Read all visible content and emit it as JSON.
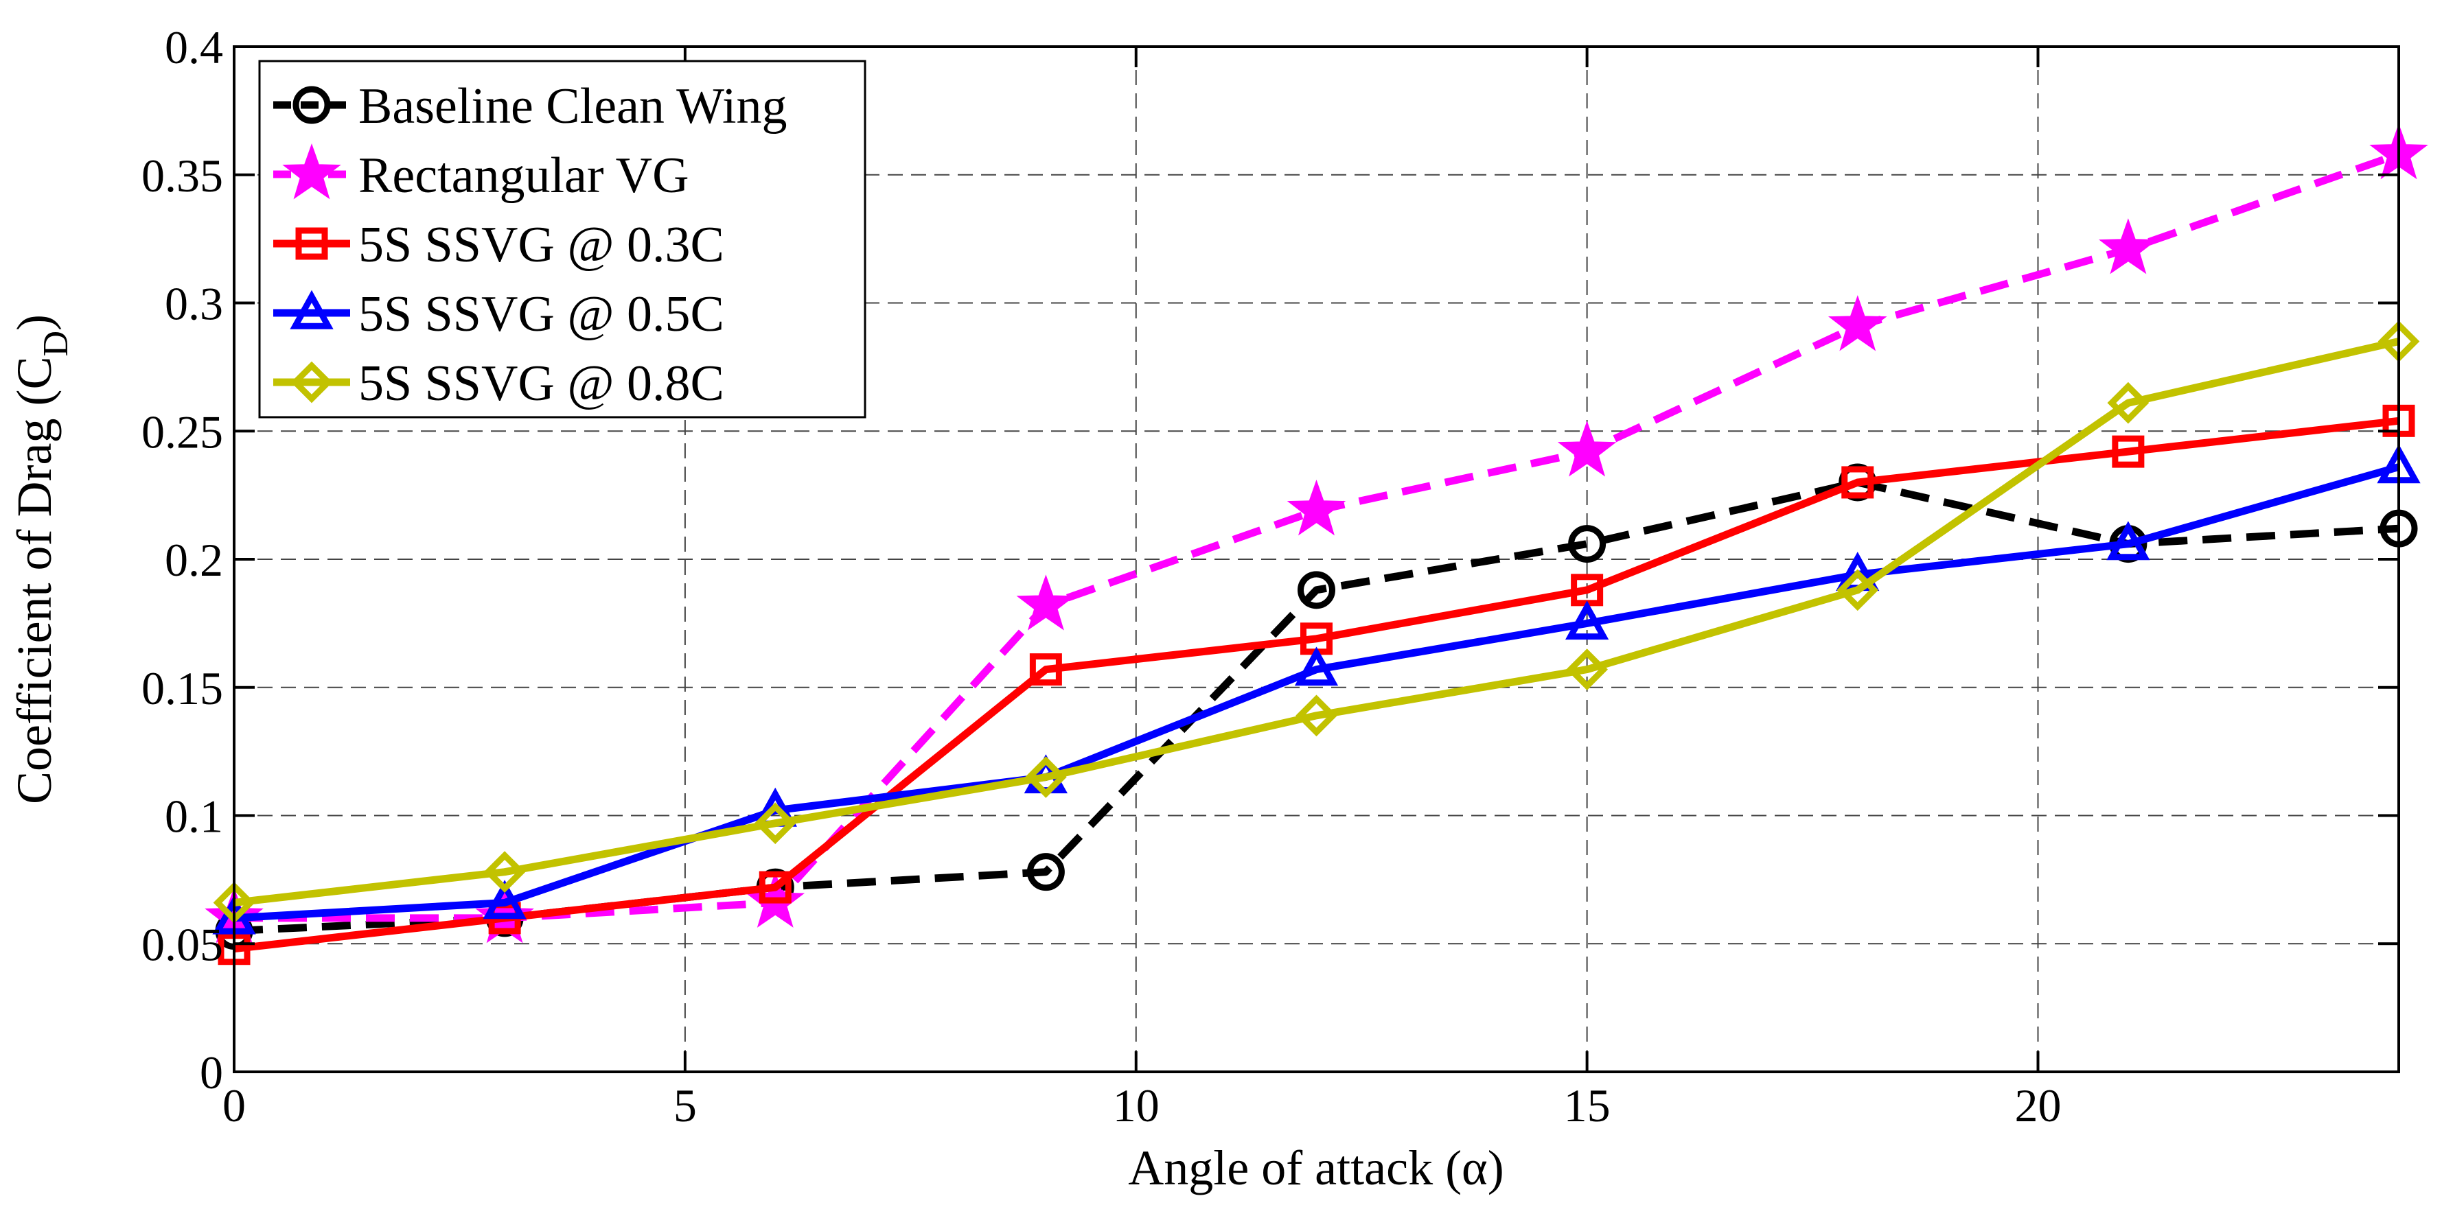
{
  "chart_data": {
    "type": "line",
    "title": "",
    "xlabel": "Angle of attack (α)",
    "ylabel_main": "Coefficient of Drag (C",
    "ylabel_sub": "D",
    "ylabel_close": ")",
    "xlim": [
      0,
      24
    ],
    "ylim": [
      0,
      0.4
    ],
    "x_ticks": [
      0,
      5,
      10,
      15,
      20
    ],
    "x_tick_labels": [
      "0",
      "5",
      "10",
      "15",
      "20"
    ],
    "y_ticks": [
      0,
      0.05,
      0.1,
      0.15,
      0.2,
      0.25,
      0.3,
      0.35,
      0.4
    ],
    "y_tick_labels": [
      "0",
      "0.05",
      "0.1",
      "0.15",
      "0.2",
      "0.25",
      "0.3",
      "0.35",
      "0.4"
    ],
    "grid": true,
    "legend_position": "top-left",
    "x": [
      0,
      3,
      6,
      9,
      12,
      15,
      18,
      21,
      24
    ],
    "series": [
      {
        "name": "Baseline Clean Wing",
        "color": "#000000",
        "dash": "dashed",
        "marker": "circle",
        "values": [
          0.055,
          0.06,
          0.072,
          0.078,
          0.188,
          0.206,
          0.23,
          0.206,
          0.212
        ]
      },
      {
        "name": "Rectangular VG",
        "color": "#ff00ff",
        "dash": "dashed",
        "marker": "star",
        "values": [
          0.06,
          0.06,
          0.066,
          0.182,
          0.219,
          0.242,
          0.291,
          0.321,
          0.358
        ]
      },
      {
        "name": "5S SSVG @ 0.3C",
        "color": "#ff0000",
        "dash": "solid",
        "marker": "square",
        "values": [
          0.048,
          0.06,
          0.072,
          0.157,
          0.169,
          0.188,
          0.23,
          0.242,
          0.254
        ]
      },
      {
        "name": "5S SSVG @ 0.5C",
        "color": "#0000ff",
        "dash": "solid",
        "marker": "triangle",
        "values": [
          0.06,
          0.066,
          0.102,
          0.115,
          0.157,
          0.175,
          0.194,
          0.206,
          0.236
        ]
      },
      {
        "name": "5S SSVG @ 0.8C",
        "color": "#c2c200",
        "dash": "solid",
        "marker": "diamond",
        "values": [
          0.066,
          0.078,
          0.097,
          0.115,
          0.139,
          0.157,
          0.188,
          0.261,
          0.285
        ]
      }
    ]
  }
}
